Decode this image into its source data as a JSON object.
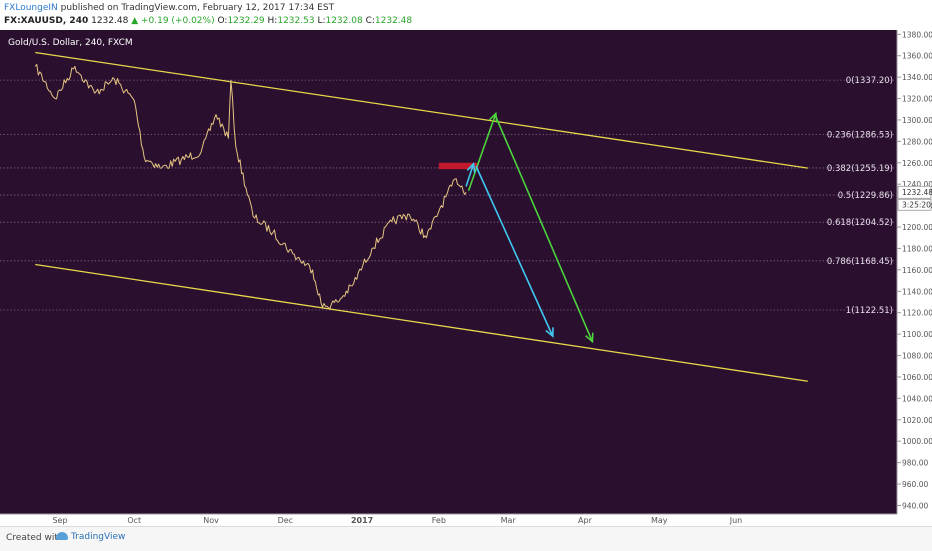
{
  "header": {
    "username": "FXLoungeIN",
    "published_text": "published on TradingView.com, February 12, 2017 17:34 EST",
    "symbol": "FX:XAUUSD, 240",
    "last_price": "1232.48",
    "change": "▲ +0.19 (+0.02%)",
    "ohlc": [
      {
        "label": "O:",
        "value": "1232.29"
      },
      {
        "label": "H:",
        "value": "1232.53"
      },
      {
        "label": "L:",
        "value": "1232.08"
      },
      {
        "label": "C:",
        "value": "1232.48"
      }
    ]
  },
  "chart_data": {
    "type": "line",
    "title": "Gold/U.S. Dollar, 240, FXCM",
    "y_axis_labels": [
      "1380.00",
      "1360.00",
      "1340.00",
      "1320.00",
      "1300.00",
      "1280.00",
      "1260.00",
      "1240.00",
      "1220.00",
      "1200.00",
      "1180.00",
      "1160.00",
      "1140.00",
      "1120.00",
      "1100.00",
      "1080.00",
      "1060.00",
      "1040.00",
      "1020.00",
      "1000.00",
      "980.00",
      "960.00",
      "940.00"
    ],
    "ylim": [
      930,
      1385
    ],
    "x_axis_labels": [
      "Sep",
      "Oct",
      "Nov",
      "Dec",
      "2017",
      "Feb",
      "Mar",
      "Apr",
      "May",
      "Jun"
    ],
    "series": [
      {
        "x": [
          "Aug 22",
          "Aug 30",
          "Sep 7",
          "Sep 15",
          "Sep 23",
          "Oct 1",
          "Oct 5",
          "Oct 12",
          "Oct 20",
          "Oct 28",
          "Nov 3",
          "Nov 8",
          "Nov 9",
          "Nov 11",
          "Nov 18",
          "Nov 26",
          "Dec 4",
          "Dec 12",
          "Dec 16",
          "Dec 22",
          "Dec 28",
          "Jan 5",
          "Jan 13",
          "Jan 20",
          "Jan 27",
          "Feb 2",
          "Feb 8",
          "Feb 12"
        ],
        "values": [
          1350,
          1320,
          1350,
          1325,
          1338,
          1318,
          1265,
          1255,
          1263,
          1270,
          1305,
          1283,
          1337,
          1275,
          1210,
          1195,
          1175,
          1160,
          1125,
          1130,
          1145,
          1180,
          1205,
          1212,
          1190,
          1220,
          1245,
          1232.48
        ]
      }
    ],
    "current_price_label": "1232.48",
    "countdown_label": "3:25:20",
    "fibonacci": [
      {
        "label": "0(1337.20)",
        "value": 1337.2
      },
      {
        "label": "0.236(1286.53)",
        "value": 1286.53
      },
      {
        "label": "0.382(1255.19)",
        "value": 1255.19
      },
      {
        "label": "0.5(1229.86)",
        "value": 1229.86
      },
      {
        "label": "0.618(1204.52)",
        "value": 1204.52
      },
      {
        "label": "0.786(1168.45)",
        "value": 1168.45
      },
      {
        "label": "1(1122.51)",
        "value": 1122.51
      }
    ],
    "channel_lines": [
      {
        "from": {
          "x": "Aug 22",
          "y": 1363
        },
        "to": {
          "x": "Jun 30",
          "y": 1255
        }
      },
      {
        "from": {
          "x": "Aug 22",
          "y": 1165
        },
        "to": {
          "x": "Jun 30",
          "y": 1056
        }
      }
    ],
    "resistance_zone": {
      "x_from": "Feb 1",
      "x_to": "Feb 17",
      "y_from": 1254,
      "y_to": 1260
    },
    "projection_arrows": [
      {
        "from": {
          "x": "Feb 13",
          "y": 1234
        },
        "to": {
          "x": "Feb 24",
          "y": 1306
        },
        "color": "#4cd43c"
      },
      {
        "from": {
          "x": "Feb 24",
          "y": 1303
        },
        "to": {
          "x": "Apr 4",
          "y": 1093
        },
        "color": "#4cd43c"
      },
      {
        "from": {
          "x": "Feb 12",
          "y": 1238
        },
        "to": {
          "x": "Feb 15",
          "y": 1259
        },
        "color": "#3fc8f0"
      },
      {
        "from": {
          "x": "Feb 16",
          "y": 1257
        },
        "to": {
          "x": "Mar 19",
          "y": 1098
        },
        "color": "#3fc8f0"
      }
    ],
    "colors": {
      "background": "#2a0f2f",
      "candles": "#e6c682",
      "channel": "#e8d84a",
      "resistance": "#c21a2c",
      "grid": "#7c5f82",
      "axis_text": "#555555"
    }
  },
  "footer": {
    "created_with": "Created with",
    "brand": "TradingView"
  }
}
